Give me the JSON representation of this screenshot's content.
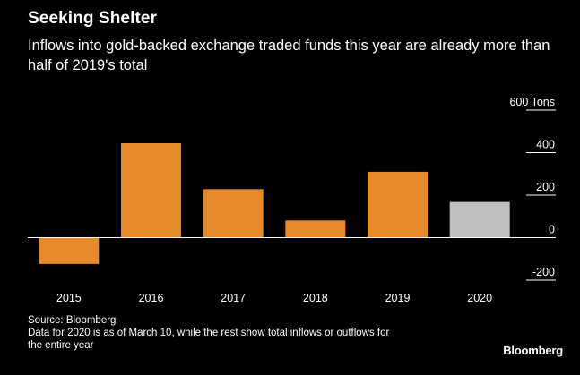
{
  "header": {
    "title": "Seeking Shelter",
    "subtitle": "Inflows into gold-backed exchange traded funds this year are already more than half of 2019's total"
  },
  "footer": {
    "source": "Source: Bloomberg",
    "note": "Data for 2020 is as of March 10, while the rest show total inflows or outflows for the entire year",
    "brand": "Bloomberg"
  },
  "colors": {
    "background": "#000000",
    "bar": "#e5892a",
    "bar_highlight": "#bfbfbf",
    "axis": "#ffffff",
    "text": "#ffffff"
  },
  "chart_data": {
    "type": "bar",
    "categories": [
      "2015",
      "2016",
      "2017",
      "2018",
      "2019",
      "2020"
    ],
    "values": [
      -124,
      444,
      228,
      81,
      310,
      168
    ],
    "highlighted_category": "2020",
    "ylim": [
      -200,
      600
    ],
    "yticks": [
      -200,
      0,
      200,
      400,
      600
    ],
    "ytick_labels": [
      "-200",
      "0",
      "200",
      "400",
      "600"
    ],
    "y_unit": "Tons",
    "y_axis_side": "right",
    "grid": false
  }
}
